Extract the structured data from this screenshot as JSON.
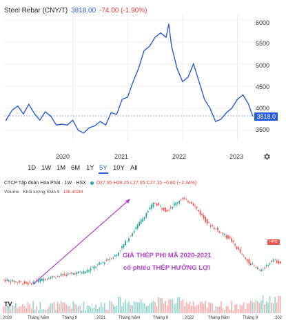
{
  "steel_chart": {
    "title": "Steel Rebar (CNY/T)",
    "price": "3818.00",
    "change": "-74.00 (-1.90%)",
    "y_ticks": [
      "6000",
      "5500",
      "5000",
      "4500",
      "4000",
      "3500"
    ],
    "current_label": "3818.0",
    "x_ticks": [
      "2020",
      "2021",
      "2022",
      "2023"
    ],
    "timeframes": [
      "1D",
      "1W",
      "1M",
      "6M",
      "1Y",
      "5Y",
      "10Y",
      "All"
    ],
    "active_timeframe": "5Y",
    "line_color": "#2a5bd7"
  },
  "stock_chart": {
    "title": "CTCP Tập đoàn Hòa Phát · 1W · HSX",
    "ohlc": "O27.95 H28.25 L27.05 C27.15 −0.80 (−2.34%)",
    "volume_label": "Volume · Khối lượng SMA 9",
    "volume_value": "136.402M",
    "ticker_badge": "HPG",
    "annotation_line1": "GIÁ THÉP PHI MÃ 2020-2021",
    "annotation_line2": "cổ phiếu THÉP HƯỞNG LỢI",
    "x_ticks": [
      "2020",
      "Tháng Năm",
      "Tháng 9",
      "2021",
      "Tháng Năm",
      "Tháng 9",
      "2022",
      "Tháng Năm",
      "Tháng 9",
      "202"
    ],
    "watermark": "TV",
    "up_color": "#26a69a",
    "down_color": "#ef5350",
    "annotation_color": "#b13fd0"
  },
  "chart_data": [
    {
      "type": "line",
      "title": "Steel Rebar (CNY/T)",
      "xlabel": "",
      "ylabel": "",
      "ylim": [
        3250,
        6100
      ],
      "x": [
        2018.78,
        2018.9,
        2019.0,
        2019.1,
        2019.2,
        2019.3,
        2019.4,
        2019.5,
        2019.6,
        2019.7,
        2019.8,
        2019.9,
        2020.0,
        2020.1,
        2020.2,
        2020.3,
        2020.4,
        2020.5,
        2020.6,
        2020.7,
        2020.8,
        2020.9,
        2021.0,
        2021.1,
        2021.2,
        2021.3,
        2021.4,
        2021.5,
        2021.6,
        2021.7,
        2021.75,
        2021.8,
        2021.9,
        2022.0,
        2022.1,
        2022.2,
        2022.3,
        2022.4,
        2022.5,
        2022.6,
        2022.7,
        2022.8,
        2022.9,
        2023.0,
        2023.1,
        2023.2,
        2023.28
      ],
      "y": [
        3720,
        3960,
        4050,
        3870,
        4090,
        3880,
        3730,
        3920,
        3820,
        3620,
        3640,
        3620,
        3730,
        3500,
        3440,
        3560,
        3600,
        3700,
        3620,
        3900,
        3860,
        4200,
        4250,
        4600,
        4900,
        5300,
        5400,
        5600,
        5700,
        5600,
        5900,
        5400,
        4900,
        4600,
        4700,
        5000,
        4600,
        4200,
        4000,
        3700,
        3750,
        3900,
        4000,
        4200,
        4300,
        4100,
        3818
      ],
      "grid": true,
      "legend": "none"
    },
    {
      "type": "bar",
      "title": "CTCP Tập đoàn Hòa Phát",
      "categories": [
        "2020",
        "Tháng Năm",
        "Tháng 9",
        "2021",
        "Tháng Năm",
        "Tháng 9",
        "2022",
        "Tháng Năm",
        "Tháng 9",
        "202"
      ],
      "series": [
        {
          "name": "Volume",
          "values": [
            40,
            35,
            45,
            60,
            70,
            80,
            95,
            110,
            90,
            80
          ]
        }
      ]
    }
  ]
}
